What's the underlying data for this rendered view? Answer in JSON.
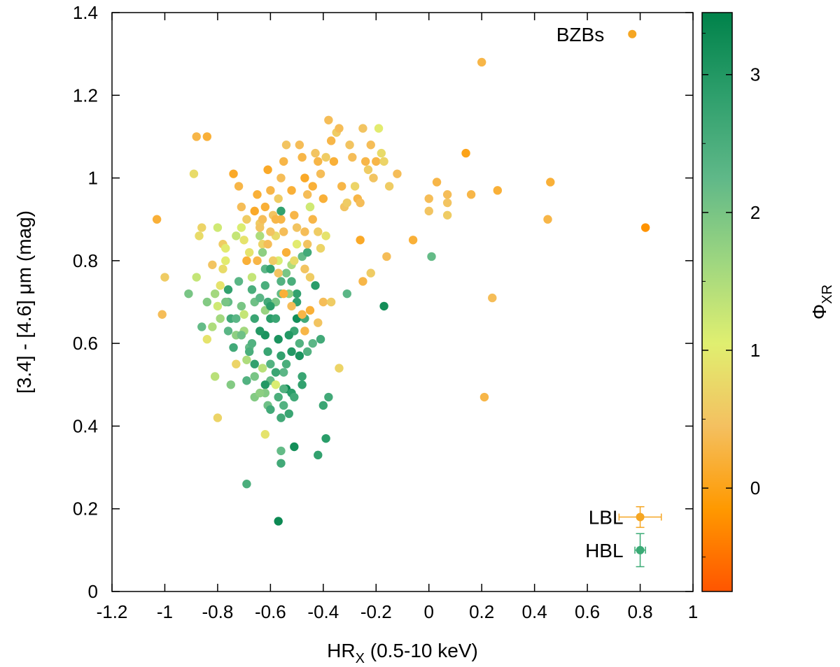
{
  "chart_data": {
    "type": "scatter",
    "xlabel": {
      "main": "HR",
      "sub": "X",
      "rest": " (0.5-10 keV)"
    },
    "ylabel": "[3.4] - [4.6] μm (mag)",
    "colorbar_label": {
      "main": "Φ",
      "sub": "XR"
    },
    "xlim": [
      -1.2,
      1.0
    ],
    "ylim": [
      0,
      1.4
    ],
    "clim": [
      -0.75,
      3.45
    ],
    "x_ticks": [
      "-1.2",
      "-1",
      "-0.8",
      "-0.6",
      "-0.4",
      "-0.2",
      "0",
      "0.2",
      "0.4",
      "0.6",
      "0.8",
      "1"
    ],
    "y_ticks": [
      "0",
      "0.2",
      "0.4",
      "0.6",
      "0.8",
      "1",
      "1.2",
      "1.4"
    ],
    "colorbar_ticks": [
      "0",
      "1",
      "2",
      "3"
    ],
    "colors": {
      "stops": [
        "#ff5500",
        "#ff9900",
        "#f4c060",
        "#e0ef70",
        "#9dd680",
        "#5fb888",
        "#2e9f6c",
        "#00824a"
      ],
      "lbl": "#f5a623",
      "hbl": "#3aaa75",
      "bzb_key": "#f5a623"
    },
    "legend": {
      "bzb": {
        "label": "BZBs",
        "x": 0.77,
        "y": 1.348,
        "phi": 0.55
      },
      "lbl": {
        "label": "LBL",
        "x": 0.8,
        "y": 0.18,
        "xerr": 0.08,
        "yerr": 0.025
      },
      "hbl": {
        "label": "HBL",
        "x": 0.8,
        "y": 0.1,
        "xerr": 0.02,
        "yerr": 0.04
      }
    },
    "points": [
      [
        -1.03,
        0.9,
        0.2
      ],
      [
        -1.01,
        0.67,
        0.4
      ],
      [
        -1.0,
        0.76,
        0.6
      ],
      [
        -0.89,
        1.01,
        0.8
      ],
      [
        -0.88,
        1.1,
        0.3
      ],
      [
        -0.84,
        1.1,
        0.2
      ],
      [
        -0.87,
        0.86,
        0.8
      ],
      [
        -0.86,
        0.88,
        0.7
      ],
      [
        -0.88,
        0.76,
        1.3
      ],
      [
        -0.91,
        0.72,
        2.0
      ],
      [
        -0.86,
        0.64,
        2.2
      ],
      [
        -0.84,
        0.7,
        1.9
      ],
      [
        -0.82,
        0.79,
        0.5
      ],
      [
        -0.81,
        0.72,
        1.6
      ],
      [
        -0.8,
        0.42,
        0.7
      ],
      [
        -0.81,
        0.52,
        1.4
      ],
      [
        -0.8,
        0.88,
        1.2
      ],
      [
        -0.78,
        0.84,
        0.6
      ],
      [
        -0.77,
        0.8,
        1.0
      ],
      [
        -0.76,
        0.73,
        2.8
      ],
      [
        -0.76,
        0.7,
        2.2
      ],
      [
        -0.75,
        0.66,
        2.6
      ],
      [
        -0.74,
        0.59,
        2.6
      ],
      [
        -0.73,
        0.62,
        1.8
      ],
      [
        -0.74,
        1.01,
        0.1
      ],
      [
        -0.72,
        0.98,
        0.3
      ],
      [
        -0.71,
        0.93,
        0.4
      ],
      [
        -0.69,
        0.9,
        0.6
      ],
      [
        -0.7,
        0.85,
        0.9
      ],
      [
        -0.69,
        0.8,
        0.2
      ],
      [
        -0.72,
        0.75,
        2.3
      ],
      [
        -0.71,
        0.69,
        2.0
      ],
      [
        -0.7,
        0.67,
        1.3
      ],
      [
        -0.7,
        0.63,
        1.6
      ],
      [
        -0.69,
        0.56,
        1.5
      ],
      [
        -0.68,
        0.59,
        2.2
      ],
      [
        -0.67,
        0.73,
        2.5
      ],
      [
        -0.66,
        0.7,
        2.1
      ],
      [
        -0.66,
        0.55,
        2.8
      ],
      [
        -0.66,
        0.92,
        0.1
      ],
      [
        -0.65,
        0.96,
        0.2
      ],
      [
        -0.64,
        0.89,
        0.6
      ],
      [
        -0.64,
        0.86,
        1.5
      ],
      [
        -0.63,
        0.84,
        0.7
      ],
      [
        -0.63,
        0.82,
        1.8
      ],
      [
        -0.62,
        0.78,
        2.3
      ],
      [
        -0.62,
        0.74,
        2.5
      ],
      [
        -0.61,
        0.7,
        2.6
      ],
      [
        -0.6,
        0.66,
        2.9
      ],
      [
        -0.62,
        0.62,
        3.1
      ],
      [
        -0.61,
        0.58,
        2.7
      ],
      [
        -0.6,
        0.55,
        2.4
      ],
      [
        -0.6,
        0.51,
        2.2
      ],
      [
        -0.62,
        0.5,
        3.0
      ],
      [
        -0.61,
        0.45,
        2.1
      ],
      [
        -0.62,
        0.48,
        1.9
      ],
      [
        -0.63,
        0.54,
        1.4
      ],
      [
        -0.66,
        0.52,
        2.0
      ],
      [
        -0.67,
        0.6,
        2.4
      ],
      [
        -0.65,
        0.8,
        0.3
      ],
      [
        -0.64,
        0.88,
        0.5
      ],
      [
        -0.63,
        0.9,
        0.4
      ],
      [
        -0.62,
        0.93,
        0.2
      ],
      [
        -0.61,
        1.02,
        0.1
      ],
      [
        -0.6,
        0.97,
        0.3
      ],
      [
        -0.59,
        0.91,
        0.5
      ],
      [
        -0.58,
        0.86,
        0.8
      ],
      [
        -0.57,
        0.8,
        1.1
      ],
      [
        -0.56,
        0.75,
        2.4
      ],
      [
        -0.58,
        0.7,
        2.0
      ],
      [
        -0.58,
        0.66,
        2.7
      ],
      [
        -0.57,
        0.61,
        3.1
      ],
      [
        -0.56,
        0.57,
        2.8
      ],
      [
        -0.55,
        0.53,
        2.3
      ],
      [
        -0.54,
        0.49,
        3.3
      ],
      [
        -0.55,
        0.45,
        2.4
      ],
      [
        -0.56,
        0.42,
        2.6
      ],
      [
        -0.56,
        0.34,
        2.2
      ],
      [
        -0.56,
        0.31,
        2.6
      ],
      [
        -0.53,
        0.43,
        2.7
      ],
      [
        -0.52,
        0.48,
        2.9
      ],
      [
        -0.52,
        0.58,
        3.0
      ],
      [
        -0.51,
        0.63,
        2.7
      ],
      [
        -0.5,
        0.66,
        3.2
      ],
      [
        -0.5,
        0.72,
        2.8
      ],
      [
        -0.52,
        0.75,
        2.5
      ],
      [
        -0.54,
        0.82,
        0.2
      ],
      [
        -0.55,
        0.87,
        0.4
      ],
      [
        -0.56,
        0.9,
        0.3
      ],
      [
        -0.57,
        0.95,
        0.6
      ],
      [
        -0.56,
        1.0,
        0.4
      ],
      [
        -0.55,
        1.04,
        0.3
      ],
      [
        -0.54,
        1.08,
        0.5
      ],
      [
        -0.52,
        0.97,
        0.2
      ],
      [
        -0.51,
        0.91,
        0.3
      ],
      [
        -0.5,
        0.88,
        0.5
      ],
      [
        -0.49,
        1.08,
        0.4
      ],
      [
        -0.48,
        1.05,
        0.3
      ],
      [
        -0.47,
        1.0,
        0.1
      ],
      [
        -0.46,
        0.96,
        0.4
      ],
      [
        -0.45,
        0.93,
        0.7
      ],
      [
        -0.44,
        0.98,
        0.2
      ],
      [
        -0.43,
        1.06,
        0.5
      ],
      [
        -0.42,
        1.04,
        0.3
      ],
      [
        -0.41,
        1.01,
        0.4
      ],
      [
        -0.4,
        0.95,
        0.2
      ],
      [
        -0.39,
        1.05,
        0.6
      ],
      [
        -0.38,
        1.14,
        0.4
      ],
      [
        -0.37,
        1.09,
        0.3
      ],
      [
        -0.36,
        1.04,
        0.2
      ],
      [
        -0.35,
        1.11,
        0.6
      ],
      [
        -0.34,
        1.12,
        0.4
      ],
      [
        -0.33,
        0.98,
        0.3
      ],
      [
        -0.32,
        0.93,
        0.5
      ],
      [
        -0.31,
        0.94,
        0.6
      ],
      [
        -0.3,
        1.08,
        0.5
      ],
      [
        -0.29,
        1.05,
        0.4
      ],
      [
        -0.28,
        0.98,
        0.7
      ],
      [
        -0.27,
        0.95,
        0.3
      ],
      [
        -0.26,
        0.94,
        0.4
      ],
      [
        -0.25,
        1.12,
        0.5
      ],
      [
        -0.24,
        1.04,
        0.3
      ],
      [
        -0.23,
        1.02,
        0.6
      ],
      [
        -0.22,
        1.08,
        0.4
      ],
      [
        -0.21,
        1.0,
        0.5
      ],
      [
        -0.2,
        1.04,
        0.3
      ],
      [
        -0.19,
        1.12,
        1.0
      ],
      [
        -0.18,
        1.06,
        0.8
      ],
      [
        -0.17,
        1.04,
        0.7
      ],
      [
        -0.15,
        0.98,
        0.6
      ],
      [
        -0.12,
        1.01,
        0.4
      ],
      [
        -0.26,
        0.85,
        0.1
      ],
      [
        -0.25,
        0.75,
        0.3
      ],
      [
        -0.22,
        0.77,
        0.6
      ],
      [
        -0.16,
        0.81,
        0.4
      ],
      [
        -0.17,
        0.69,
        3.2
      ],
      [
        -0.06,
        0.85,
        0.2
      ],
      [
        0.0,
        0.95,
        0.4
      ],
      [
        0.0,
        0.92,
        0.5
      ],
      [
        0.01,
        0.81,
        2.2
      ],
      [
        0.03,
        0.99,
        0.3
      ],
      [
        0.07,
        0.96,
        0.4
      ],
      [
        0.07,
        0.94,
        0.5
      ],
      [
        0.07,
        0.91,
        0.6
      ],
      [
        0.14,
        1.06,
        0.0
      ],
      [
        0.16,
        0.96,
        0.3
      ],
      [
        0.2,
        1.28,
        0.3
      ],
      [
        0.21,
        0.47,
        0.3
      ],
      [
        0.24,
        0.71,
        0.4
      ],
      [
        0.26,
        0.97,
        0.2
      ],
      [
        0.45,
        0.9,
        0.3
      ],
      [
        0.46,
        0.99,
        0.2
      ],
      [
        0.82,
        0.88,
        -0.2
      ],
      [
        -0.48,
        0.81,
        2.2
      ],
      [
        -0.46,
        0.82,
        2.6
      ],
      [
        -0.45,
        0.93,
        1.2
      ],
      [
        -0.47,
        0.87,
        0.4
      ],
      [
        -0.46,
        0.84,
        0.5
      ],
      [
        -0.44,
        0.9,
        0.3
      ],
      [
        -0.42,
        0.87,
        0.6
      ],
      [
        -0.41,
        0.83,
        0.7
      ],
      [
        -0.39,
        0.86,
        0.9
      ],
      [
        -0.43,
        0.74,
        2.9
      ],
      [
        -0.41,
        0.61,
        2.6
      ],
      [
        -0.4,
        0.45,
        2.7
      ],
      [
        -0.38,
        0.47,
        2.6
      ],
      [
        -0.39,
        0.37,
        2.9
      ],
      [
        -0.42,
        0.33,
        2.8
      ],
      [
        -0.49,
        0.57,
        3.1
      ],
      [
        -0.48,
        0.52,
        2.7
      ],
      [
        -0.49,
        0.6,
        2.4
      ],
      [
        -0.47,
        0.63,
        0.3
      ],
      [
        -0.45,
        0.68,
        0.2
      ],
      [
        -0.4,
        0.7,
        0.4
      ],
      [
        -0.42,
        0.65,
        0.5
      ],
      [
        -0.37,
        0.7,
        0.6
      ],
      [
        -0.34,
        0.54,
        0.7
      ],
      [
        -0.31,
        0.72,
        2.3
      ],
      [
        -0.51,
        0.35,
        3.2
      ],
      [
        -0.53,
        0.62,
        3.0
      ],
      [
        -0.55,
        0.49,
        2.4
      ],
      [
        -0.57,
        0.17,
        3.3
      ],
      [
        -0.69,
        0.26,
        2.5
      ],
      [
        -0.62,
        0.38,
        0.9
      ],
      [
        -0.6,
        0.44,
        2.6
      ],
      [
        -0.58,
        0.5,
        1.1
      ],
      [
        -0.53,
        0.72,
        1.8
      ],
      [
        -0.52,
        0.79,
        1.5
      ],
      [
        -0.54,
        0.77,
        2.0
      ],
      [
        -0.51,
        0.8,
        0.8
      ],
      [
        -0.5,
        0.84,
        1.0
      ],
      [
        -0.6,
        0.78,
        2.8
      ],
      [
        -0.62,
        0.68,
        1.7
      ],
      [
        -0.64,
        0.71,
        2.3
      ],
      [
        -0.67,
        0.76,
        1.3
      ],
      [
        -0.68,
        0.82,
        0.9
      ],
      [
        -0.71,
        0.88,
        1.1
      ],
      [
        -0.73,
        0.86,
        1.3
      ],
      [
        -0.77,
        0.83,
        1.0
      ],
      [
        -0.78,
        0.78,
        0.8
      ],
      [
        -0.79,
        0.74,
        0.9
      ],
      [
        -0.8,
        0.69,
        1.2
      ],
      [
        -0.76,
        0.63,
        2.3
      ],
      [
        -0.73,
        0.55,
        0.7
      ],
      [
        -0.75,
        0.5,
        1.9
      ],
      [
        -0.69,
        0.51,
        2.4
      ],
      [
        -0.66,
        0.47,
        1.9
      ],
      [
        -0.64,
        0.48,
        1.8
      ],
      [
        -0.58,
        0.53,
        2.7
      ],
      [
        -0.57,
        0.47,
        2.5
      ],
      [
        -0.54,
        0.55,
        2.5
      ],
      [
        -0.51,
        0.47,
        2.6
      ],
      [
        -0.48,
        0.5,
        2.8
      ],
      [
        -0.46,
        0.58,
        2.4
      ],
      [
        -0.44,
        0.6,
        2.3
      ],
      [
        -0.47,
        0.66,
        2.6
      ],
      [
        -0.5,
        0.7,
        2.8
      ],
      [
        -0.56,
        0.72,
        2.2
      ],
      [
        -0.6,
        0.69,
        2.9
      ],
      [
        -0.64,
        0.63,
        3.0
      ],
      [
        -0.66,
        0.66,
        2.7
      ],
      [
        -0.68,
        0.58,
        2.5
      ],
      [
        -0.71,
        0.62,
        2.1
      ],
      [
        -0.73,
        0.66,
        2.3
      ],
      [
        -0.77,
        0.7,
        2.0
      ],
      [
        -0.79,
        0.66,
        1.6
      ],
      [
        -0.82,
        0.64,
        1.5
      ],
      [
        -0.84,
        0.61,
        0.9
      ],
      [
        -0.56,
        0.92,
        2.8
      ],
      [
        -0.58,
        0.9,
        0.3
      ],
      [
        -0.6,
        0.87,
        0.5
      ],
      [
        -0.61,
        0.84,
        0.4
      ],
      [
        -0.59,
        0.8,
        0.6
      ],
      [
        -0.57,
        0.77,
        0.5
      ],
      [
        -0.55,
        0.72,
        0.2
      ],
      [
        -0.52,
        0.69,
        0.4
      ],
      [
        -0.48,
        0.67,
        0.3
      ],
      [
        -0.47,
        0.78,
        0.5
      ],
      [
        -0.45,
        0.76,
        0.6
      ]
    ]
  }
}
